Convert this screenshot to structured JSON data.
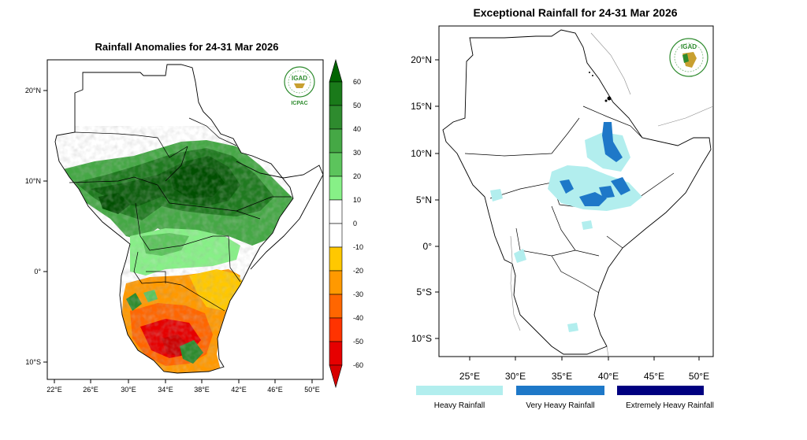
{
  "left_map": {
    "title": "Rainfall Anomalies for 24-31 Mar 2026",
    "lat_labels": [
      "20°N",
      "10°N",
      "0°",
      "10°S"
    ],
    "lon_labels": [
      "22°E",
      "26°E",
      "30°E",
      "34°E",
      "38°E",
      "42°E",
      "46°E",
      "50°E"
    ],
    "colorbar": {
      "labels": [
        "60",
        "50",
        "40",
        "30",
        "20",
        "10",
        "0",
        "-10",
        "-20",
        "-30",
        "-40",
        "-50",
        "-60"
      ],
      "colors": [
        "#006400",
        "#1a7a1a",
        "#2e8b2e",
        "#45a845",
        "#5cc45c",
        "#87f087",
        "#ffffff",
        "#ffffff",
        "#ffc800",
        "#ff9900",
        "#ff6600",
        "#ff3300",
        "#e60000",
        "#d70000"
      ]
    },
    "logo": {
      "text": "IGAD",
      "subtext": "ICPAC"
    }
  },
  "right_map": {
    "title": "Exceptional Rainfall for 24-31 Mar 2026",
    "lat_labels": [
      "20°N",
      "15°N",
      "10°N",
      "5°N",
      "0°",
      "5°S",
      "10°S"
    ],
    "lon_labels": [
      "25°E",
      "30°E",
      "35°E",
      "40°E",
      "45°E",
      "50°E"
    ],
    "logo": {
      "text": "IGAD"
    },
    "legend": [
      {
        "label": "Heavy Rainfall",
        "color": "#b2eeee"
      },
      {
        "label": "Very Heavy Rainfall",
        "color": "#1e78c8"
      },
      {
        "label": "Extremely Heavy Rainfall",
        "color": "#000080"
      }
    ]
  }
}
